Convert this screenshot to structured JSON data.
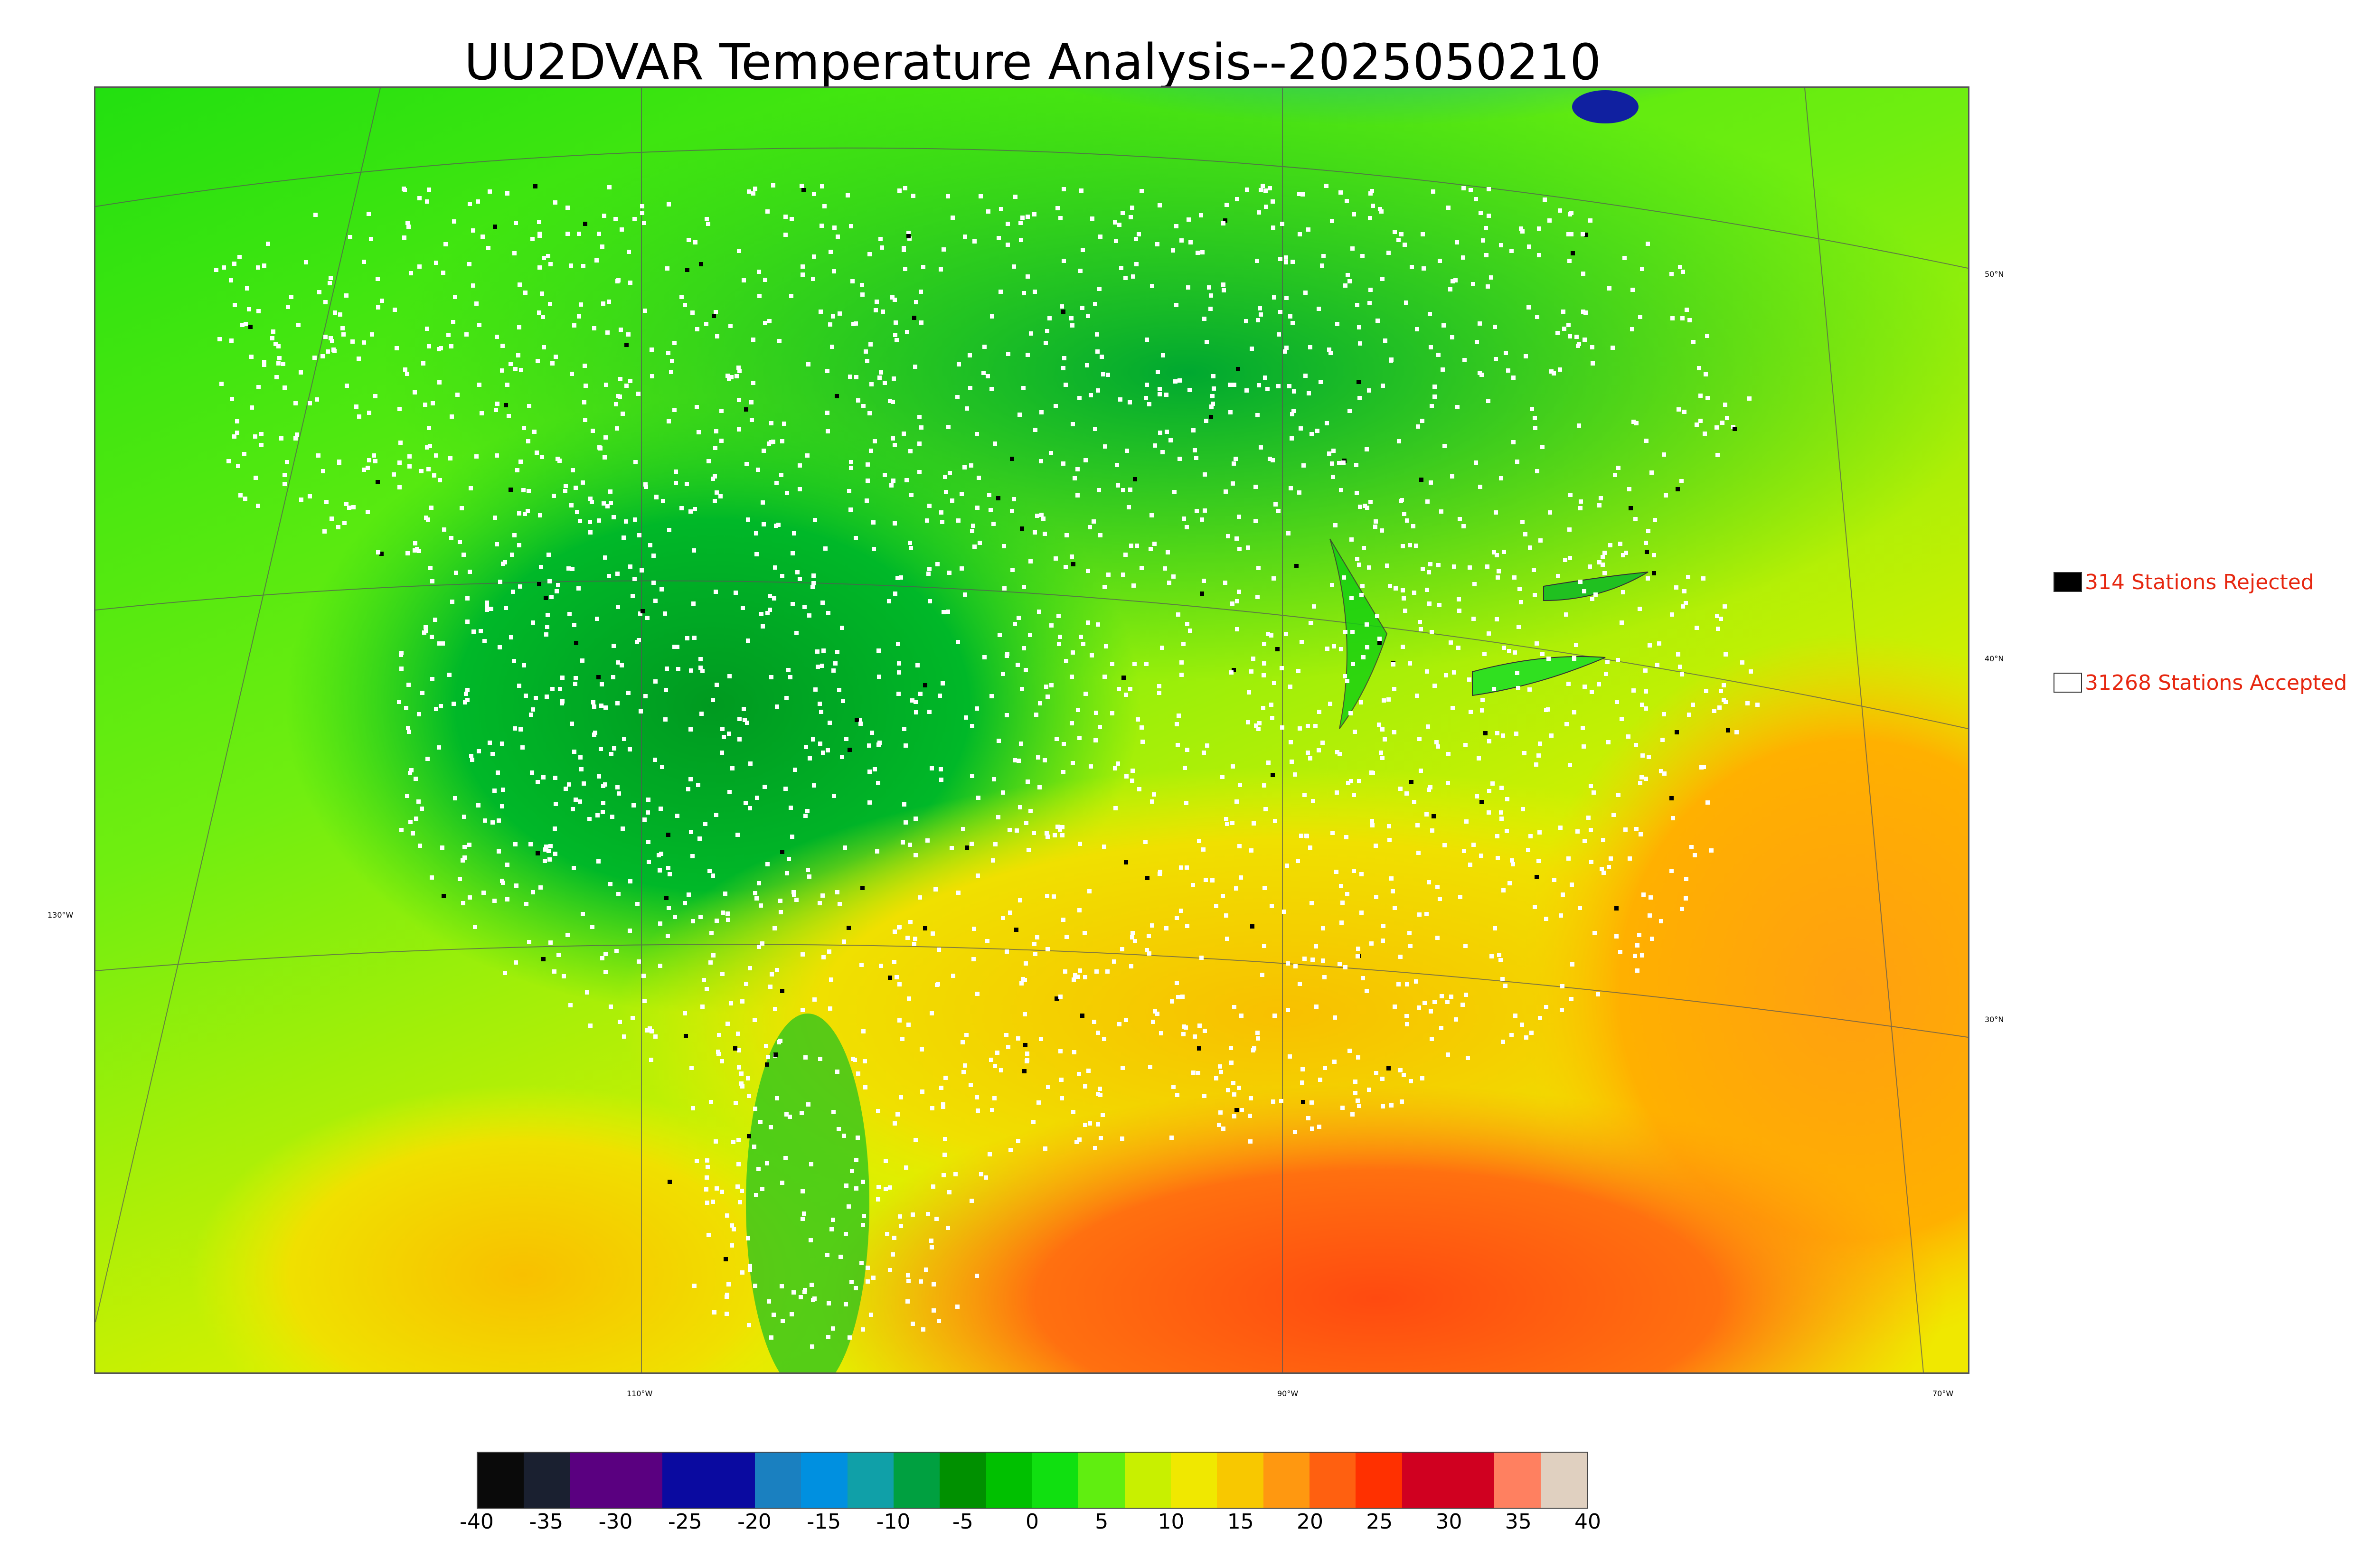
{
  "title": "UU2DVAR Temperature Analysis--2025050210",
  "map": {
    "latitude_labels": [
      "50°N",
      "40°N",
      "30°N",
      "130°W"
    ],
    "longitude_labels": [
      "110°W",
      "90°W",
      "70°W"
    ],
    "colors": {
      "cold_north": "#1aa0b0",
      "cool": "#0cb830",
      "mild": "#22e010",
      "warm": "#e8e800",
      "hot": "#ff9900",
      "gulf": "#ff6010"
    }
  },
  "legend": {
    "rejected": {
      "label": "314 Stations Rejected",
      "swatch_color": "#000000"
    },
    "accepted": {
      "label": "31268 Stations Accepted",
      "swatch_color": "#ffffff"
    }
  },
  "colorbar": {
    "ticks": [
      "-40",
      "-35",
      "-30",
      "-25",
      "-20",
      "-15",
      "-10",
      "-5",
      "0",
      "5",
      "10",
      "15",
      "20",
      "25",
      "30",
      "35",
      "40"
    ],
    "range": [
      -40,
      40
    ],
    "colors": [
      "#0a0a0a",
      "#1a2030",
      "#5a0080",
      "#5a0080",
      "#0a0aa0",
      "#0a0aa0",
      "#1a80c0",
      "#0090e0",
      "#10a0a8",
      "#00a040",
      "#009000",
      "#00c000",
      "#10e010",
      "#60ee10",
      "#c8f000",
      "#f0e800",
      "#f8c800",
      "#ff9810",
      "#ff6010",
      "#ff3000",
      "#d00020",
      "#d00020",
      "#ff8060",
      "#e0d0c0"
    ]
  }
}
